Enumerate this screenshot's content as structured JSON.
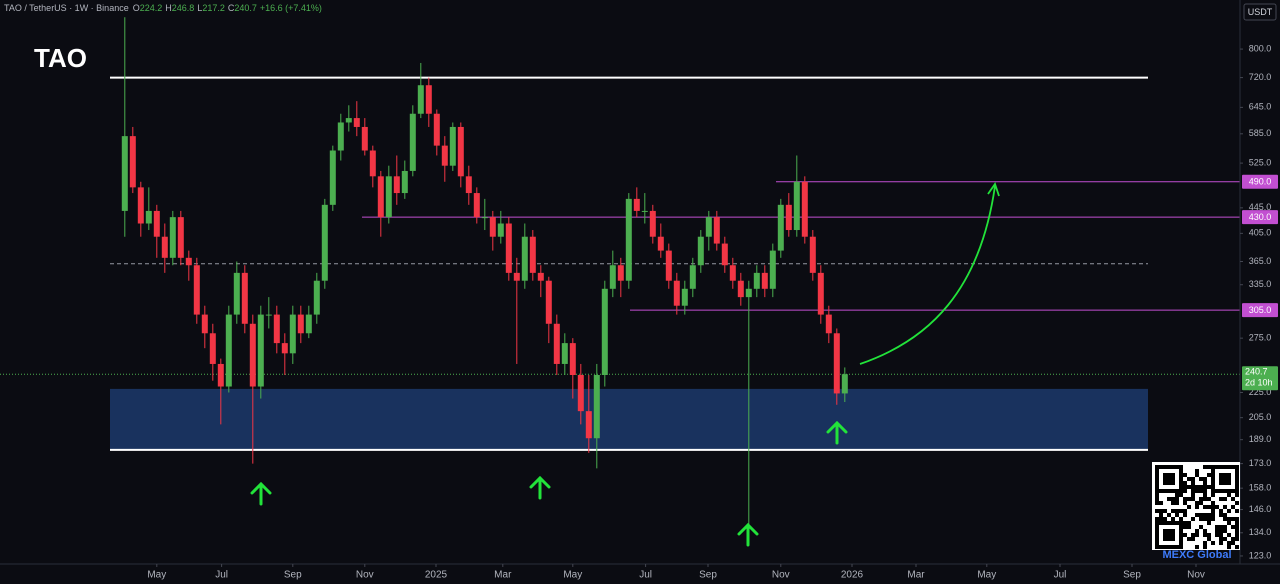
{
  "chart_data": {
    "type": "candlestick",
    "title": "TAO",
    "header": {
      "symbol": "TAO / TetherUS · 1W · Binance",
      "ohlc_labels": [
        "O",
        "H",
        "L",
        "C"
      ],
      "change": "+16.6 (+7.41%)"
    },
    "currency": "USDT",
    "countdown": "2d 10h",
    "watermark": "MEXC Global",
    "log_scale": true,
    "up_color": "#4caf50",
    "down_color": "#f23645",
    "candles": [
      [
        440,
        900,
        400,
        580
      ],
      [
        580,
        600,
        470,
        480
      ],
      [
        480,
        490,
        400,
        420
      ],
      [
        420,
        480,
        410,
        440
      ],
      [
        440,
        450,
        370,
        400
      ],
      [
        400,
        420,
        350,
        370
      ],
      [
        370,
        440,
        360,
        430
      ],
      [
        430,
        440,
        360,
        370
      ],
      [
        370,
        380,
        340,
        360
      ],
      [
        360,
        370,
        290,
        300
      ],
      [
        300,
        310,
        265,
        280
      ],
      [
        280,
        290,
        235,
        250
      ],
      [
        250,
        255,
        200,
        230
      ],
      [
        230,
        310,
        225,
        300
      ],
      [
        300,
        365,
        290,
        350
      ],
      [
        350,
        360,
        280,
        290
      ],
      [
        290,
        300,
        173,
        230
      ],
      [
        230,
        310,
        220,
        300
      ],
      [
        300,
        320,
        285,
        300
      ],
      [
        300,
        310,
        260,
        270
      ],
      [
        270,
        280,
        240,
        260
      ],
      [
        260,
        310,
        250,
        300
      ],
      [
        300,
        310,
        270,
        280
      ],
      [
        280,
        310,
        275,
        300
      ],
      [
        300,
        350,
        290,
        340
      ],
      [
        340,
        460,
        330,
        450
      ],
      [
        450,
        560,
        440,
        550
      ],
      [
        550,
        630,
        530,
        610
      ],
      [
        610,
        650,
        590,
        620
      ],
      [
        620,
        660,
        580,
        600
      ],
      [
        600,
        620,
        540,
        550
      ],
      [
        550,
        560,
        480,
        500
      ],
      [
        500,
        510,
        400,
        430
      ],
      [
        430,
        520,
        420,
        500
      ],
      [
        500,
        540,
        450,
        470
      ],
      [
        470,
        530,
        460,
        510
      ],
      [
        510,
        650,
        500,
        630
      ],
      [
        630,
        760,
        620,
        700
      ],
      [
        700,
        720,
        600,
        630
      ],
      [
        630,
        640,
        540,
        560
      ],
      [
        560,
        580,
        490,
        520
      ],
      [
        520,
        610,
        510,
        600
      ],
      [
        600,
        610,
        480,
        500
      ],
      [
        500,
        520,
        450,
        470
      ],
      [
        470,
        480,
        420,
        430
      ],
      [
        430,
        460,
        410,
        430
      ],
      [
        430,
        440,
        380,
        400
      ],
      [
        400,
        440,
        390,
        420
      ],
      [
        420,
        430,
        340,
        350
      ],
      [
        350,
        370,
        250,
        340
      ],
      [
        340,
        420,
        330,
        400
      ],
      [
        400,
        410,
        340,
        350
      ],
      [
        350,
        360,
        320,
        340
      ],
      [
        340,
        345,
        270,
        290
      ],
      [
        290,
        300,
        240,
        250
      ],
      [
        250,
        280,
        240,
        270
      ],
      [
        270,
        275,
        220,
        240
      ],
      [
        240,
        250,
        200,
        210
      ],
      [
        210,
        240,
        180,
        190
      ],
      [
        190,
        250,
        170,
        240
      ],
      [
        240,
        340,
        230,
        330
      ],
      [
        330,
        380,
        320,
        360
      ],
      [
        360,
        370,
        320,
        340
      ],
      [
        340,
        470,
        330,
        460
      ],
      [
        460,
        480,
        430,
        440
      ],
      [
        440,
        470,
        420,
        440
      ],
      [
        440,
        450,
        390,
        400
      ],
      [
        400,
        420,
        370,
        380
      ],
      [
        380,
        390,
        330,
        340
      ],
      [
        340,
        350,
        300,
        310
      ],
      [
        310,
        340,
        300,
        330
      ],
      [
        330,
        370,
        320,
        360
      ],
      [
        360,
        410,
        350,
        400
      ],
      [
        400,
        440,
        380,
        430
      ],
      [
        430,
        440,
        380,
        390
      ],
      [
        390,
        400,
        350,
        360
      ],
      [
        360,
        370,
        330,
        340
      ],
      [
        340,
        350,
        310,
        320
      ],
      [
        320,
        340,
        130,
        330
      ],
      [
        330,
        360,
        320,
        350
      ],
      [
        350,
        360,
        320,
        330
      ],
      [
        330,
        390,
        320,
        380
      ],
      [
        380,
        460,
        370,
        450
      ],
      [
        450,
        470,
        400,
        410
      ],
      [
        410,
        540,
        400,
        490
      ],
      [
        490,
        500,
        390,
        400
      ],
      [
        400,
        410,
        340,
        350
      ],
      [
        350,
        360,
        290,
        300
      ],
      [
        300,
        310,
        270,
        280
      ],
      [
        280,
        285,
        215,
        224.2
      ],
      [
        224.2,
        246.8,
        217.2,
        240.7
      ]
    ],
    "xlim": [
      -15.6,
      139.4
    ],
    "xticks": [
      {
        "value": 4,
        "label": "May"
      },
      {
        "value": 12.1,
        "label": "Jul"
      },
      {
        "value": 21,
        "label": "Sep"
      },
      {
        "value": 30,
        "label": "Nov"
      },
      {
        "value": 38.9,
        "label": "2025"
      },
      {
        "value": 47.25,
        "label": "Mar"
      },
      {
        "value": 56,
        "label": "May"
      },
      {
        "value": 65.1,
        "label": "Jul"
      },
      {
        "value": 72.9,
        "label": "Sep"
      },
      {
        "value": 82,
        "label": "Nov"
      },
      {
        "value": 90.9,
        "label": "2026"
      },
      {
        "value": 98.9,
        "label": "Mar"
      },
      {
        "value": 107.75,
        "label": "May"
      },
      {
        "value": 116.9,
        "label": "Jul"
      },
      {
        "value": 125.9,
        "label": "Sep"
      },
      {
        "value": 133.9,
        "label": "Nov"
      }
    ],
    "ylim": [
      119.4,
      959
    ],
    "yticks": [
      {
        "value": 800,
        "label": "800.0"
      },
      {
        "value": 720,
        "label": "720.0"
      },
      {
        "value": 645,
        "label": "645.0"
      },
      {
        "value": 585,
        "label": "585.0"
      },
      {
        "value": 525,
        "label": "525.0"
      },
      {
        "value": 445,
        "label": "445.0"
      },
      {
        "value": 405,
        "label": "405.0"
      },
      {
        "value": 365,
        "label": "365.0"
      },
      {
        "value": 335,
        "label": "335.0"
      },
      {
        "value": 275,
        "label": "275.0"
      },
      {
        "value": 225,
        "label": "225.0"
      },
      {
        "value": 205,
        "label": "205.0"
      },
      {
        "value": 189,
        "label": "189.0"
      },
      {
        "value": 173,
        "label": "173.0"
      },
      {
        "value": 158,
        "label": "158.0"
      },
      {
        "value": 146,
        "label": "146.0"
      },
      {
        "value": 134,
        "label": "134.0"
      },
      {
        "value": 123,
        "label": "123.0"
      }
    ],
    "levels": [
      {
        "value": 720,
        "color": "#ffffff"
      },
      {
        "value": 490,
        "label": "490.0",
        "color": "#c24fd1"
      },
      {
        "value": 430,
        "label": "430.0",
        "color": "#c24fd1"
      },
      {
        "value": 362,
        "color": "#9598a1"
      },
      {
        "value": 305,
        "label": "305.0",
        "color": "#c24fd1"
      },
      {
        "value": 182,
        "color": "#ffffff"
      }
    ],
    "zone": {
      "low": 182,
      "high": 228,
      "color": "#1f3f78"
    }
  }
}
